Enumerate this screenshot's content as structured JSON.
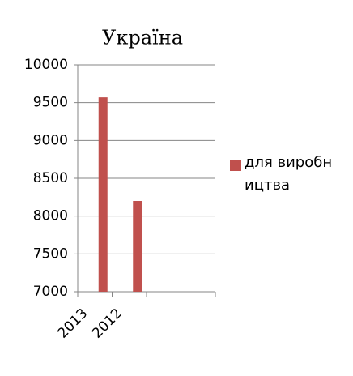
{
  "chart_data": {
    "type": "bar",
    "title": "Україна",
    "categories": [
      "2013",
      "2012",
      null,
      null
    ],
    "series": [
      {
        "name": "для виробництва",
        "color": "#c0504d",
        "values": [
          9570,
          8200,
          null,
          null
        ]
      }
    ],
    "ylim": [
      7000,
      10000
    ],
    "yticks": [
      7000,
      7500,
      8000,
      8500,
      9000,
      9500,
      10000
    ],
    "grid": true,
    "legend": "right"
  }
}
